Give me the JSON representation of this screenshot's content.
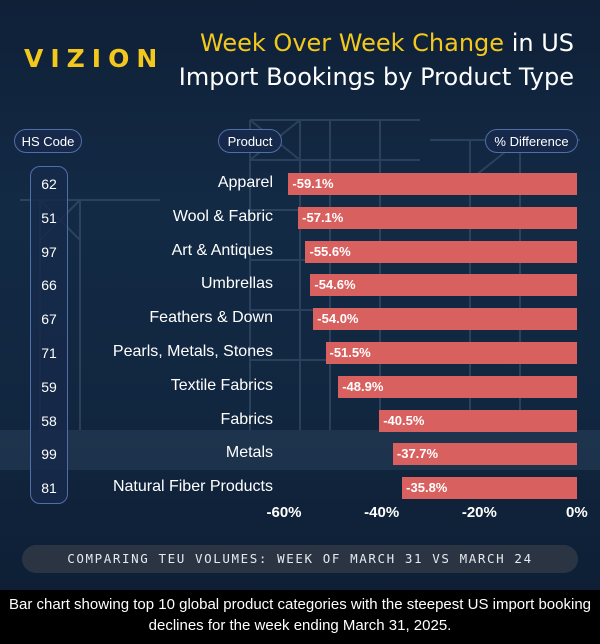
{
  "brand": "VIZION",
  "title": {
    "line1_highlight": "Week Over Week Change",
    "line1_rest": " in US",
    "line2": "Import Bookings by Product Type"
  },
  "headers": {
    "hs_code": "HS Code",
    "product": "Product",
    "difference": "% Difference"
  },
  "footer": "COMPARING TEU VOLUMES: WEEK OF MARCH 31 VS MARCH 24",
  "caption": "Bar chart showing top 10 global product categories with the steepest US import booking declines for the week ending March 31, 2025.",
  "colors": {
    "bar": "#d8605f",
    "accent": "#f3c81c",
    "background": "#12263f"
  },
  "chart_data": {
    "type": "bar",
    "orientation": "horizontal",
    "title": "Week Over Week Change in US Import Bookings by Product Type",
    "hs_codes": [
      "62",
      "51",
      "97",
      "66",
      "67",
      "71",
      "59",
      "58",
      "99",
      "81"
    ],
    "categories": [
      "Apparel",
      "Wool & Fabric",
      "Art & Antiques",
      "Umbrellas",
      "Feathers & Down",
      "Pearls, Metals, Stones",
      "Textile Fabrics",
      "Fabrics",
      "Metals",
      "Natural Fiber Products"
    ],
    "values": [
      -59.1,
      -57.1,
      -55.6,
      -54.6,
      -54.0,
      -51.5,
      -48.9,
      -40.5,
      -37.7,
      -35.8
    ],
    "value_labels": [
      "-59.1%",
      "-57.1%",
      "-55.6%",
      "-54.6%",
      "-54.0%",
      "-51.5%",
      "-48.9%",
      "-40.5%",
      "-37.7%",
      "-35.8%"
    ],
    "xlim": [
      -60,
      0
    ],
    "x_ticks": [
      -60,
      -40,
      -20,
      0
    ],
    "x_tick_labels": [
      "-60%",
      "-40%",
      "-20%",
      "0%"
    ],
    "grid": false
  }
}
